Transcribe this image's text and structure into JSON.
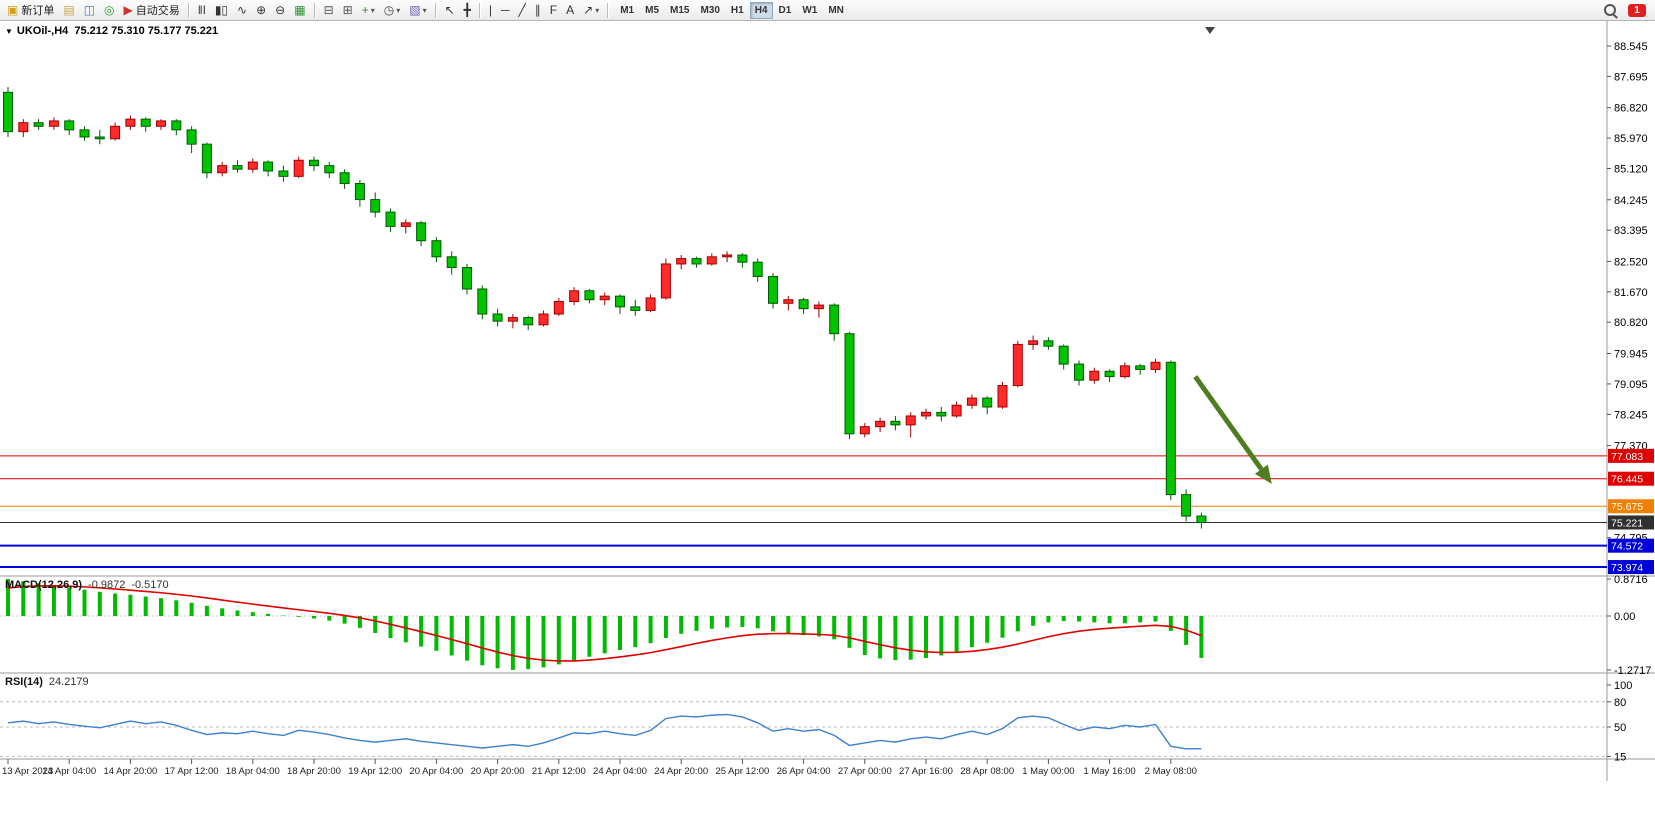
{
  "toolbar": {
    "items": [
      {
        "name": "new-order-button",
        "icon": "new-order-icon",
        "glyph": "▣",
        "color": "#d4a017",
        "label": "新订单"
      },
      {
        "name": "profiles-button",
        "icon": "profiles-icon",
        "glyph": "▤",
        "color": "#c8a54a"
      },
      {
        "name": "market-watch-button",
        "icon": "market-watch-icon",
        "glyph": "◫",
        "color": "#4a7fc0"
      },
      {
        "name": "data-window-button",
        "icon": "data-window-icon",
        "glyph": "◎",
        "color": "#2f9e2f"
      },
      {
        "name": "auto-trading-button",
        "icon": "auto-trading-icon",
        "glyph": "▶",
        "color": "#d03030",
        "label": "自动交易"
      },
      {
        "sep": true
      },
      {
        "name": "bar-chart-button",
        "icon": "bar-chart-icon",
        "glyph": "ǁǀ",
        "color": "#333333"
      },
      {
        "name": "candlestick-chart-button",
        "icon": "candlestick-icon",
        "glyph": "▮▯",
        "color": "#333333"
      },
      {
        "name": "line-chart-button",
        "icon": "line-chart-icon",
        "glyph": "∿",
        "color": "#333333"
      },
      {
        "name": "zoom-in-button",
        "icon": "zoom-in-icon",
        "glyph": "⊕",
        "color": "#333333"
      },
      {
        "name": "zoom-out-button",
        "icon": "zoom-out-icon",
        "glyph": "⊖",
        "color": "#333333"
      },
      {
        "name": "tile-windows-button",
        "icon": "tile-windows-icon",
        "glyph": "▦",
        "color": "#2f8f2f"
      },
      {
        "sep": true
      },
      {
        "name": "arrange-horizontal-button",
        "icon": "arrange-horizontal-icon",
        "glyph": "⊟",
        "color": "#555555"
      },
      {
        "name": "arrange-vertical-button",
        "icon": "arrange-vertical-icon",
        "glyph": "⊞",
        "color": "#555555"
      },
      {
        "name": "add-indicator-button",
        "icon": "add-indicator-icon",
        "glyph": "+",
        "color": "#2f8f2f",
        "dropdown": true
      },
      {
        "name": "periods-button",
        "icon": "clock-icon",
        "glyph": "◷",
        "color": "#444444",
        "dropdown": true
      },
      {
        "name": "templates-button",
        "icon": "template-icon",
        "glyph": "▧",
        "color": "#6a5fb0",
        "dropdown": true
      },
      {
        "sep": true
      },
      {
        "name": "cursor-button",
        "icon": "cursor-icon",
        "glyph": "↖",
        "color": "#333333"
      },
      {
        "name": "crosshair-button",
        "icon": "crosshair-icon",
        "glyph": "╋",
        "color": "#333333"
      },
      {
        "sep": true
      },
      {
        "name": "vertical-line-button",
        "icon": "vertical-line-icon",
        "glyph": "|",
        "color": "#333333"
      },
      {
        "name": "horizontal-line-button",
        "icon": "horizontal-line-icon",
        "glyph": "─",
        "color": "#333333"
      },
      {
        "name": "trendline-button",
        "icon": "trendline-icon",
        "glyph": "╱",
        "color": "#333333"
      },
      {
        "name": "channel-button",
        "icon": "channel-icon",
        "glyph": "∥",
        "color": "#333333"
      },
      {
        "name": "fibonacci-button",
        "icon": "fibonacci-icon",
        "glyph": "F",
        "color": "#333333"
      },
      {
        "name": "text-label-button",
        "icon": "text-icon",
        "glyph": "A",
        "color": "#333333"
      },
      {
        "name": "arrow-shapes-button",
        "icon": "arrow-shape-icon",
        "glyph": "↗",
        "color": "#333333",
        "dropdown": true
      },
      {
        "sep": true
      }
    ],
    "timeframes": [
      "M1",
      "M5",
      "M15",
      "M30",
      "H1",
      "H4",
      "D1",
      "W1",
      "MN"
    ],
    "active_timeframe": "H4",
    "notification_count": "1"
  },
  "chart": {
    "collapse_marker": "▼",
    "title_symbol": "UKOil-,H4",
    "title_ohlc": "75.212 75.310 75.177 75.221"
  },
  "chart_data": {
    "type": "candlestick",
    "symbol": "UKOil-",
    "period": "H4",
    "up_color": "#ff2a2a",
    "up_stroke": "#a00000",
    "down_color": "#00c400",
    "down_stroke": "#005a00",
    "candles": [
      [
        87.25,
        87.4,
        86.0,
        86.15
      ],
      [
        86.15,
        86.5,
        86.0,
        86.4
      ],
      [
        86.4,
        86.5,
        86.2,
        86.3
      ],
      [
        86.3,
        86.55,
        86.2,
        86.45
      ],
      [
        86.45,
        86.5,
        86.05,
        86.2
      ],
      [
        86.2,
        86.3,
        85.9,
        86.0
      ],
      [
        86.0,
        86.2,
        85.8,
        85.95
      ],
      [
        85.95,
        86.4,
        85.9,
        86.3
      ],
      [
        86.3,
        86.6,
        86.2,
        86.5
      ],
      [
        86.5,
        86.55,
        86.15,
        86.3
      ],
      [
        86.3,
        86.5,
        86.2,
        86.45
      ],
      [
        86.45,
        86.5,
        86.05,
        86.2
      ],
      [
        86.2,
        86.3,
        85.55,
        85.8
      ],
      [
        85.8,
        85.85,
        84.85,
        85.0
      ],
      [
        85.0,
        85.3,
        84.9,
        85.2
      ],
      [
        85.2,
        85.35,
        85.0,
        85.1
      ],
      [
        85.1,
        85.4,
        85.0,
        85.3
      ],
      [
        85.3,
        85.35,
        84.9,
        85.05
      ],
      [
        85.05,
        85.2,
        84.75,
        84.9
      ],
      [
        84.9,
        85.45,
        84.85,
        85.35
      ],
      [
        85.35,
        85.45,
        85.05,
        85.2
      ],
      [
        85.2,
        85.3,
        84.85,
        85.0
      ],
      [
        85.0,
        85.1,
        84.55,
        84.7
      ],
      [
        84.7,
        84.8,
        84.05,
        84.25
      ],
      [
        84.25,
        84.45,
        83.75,
        83.9
      ],
      [
        83.9,
        84.0,
        83.35,
        83.5
      ],
      [
        83.5,
        83.7,
        83.3,
        83.6
      ],
      [
        83.6,
        83.65,
        82.95,
        83.1
      ],
      [
        83.1,
        83.2,
        82.5,
        82.65
      ],
      [
        82.65,
        82.8,
        82.15,
        82.35
      ],
      [
        82.35,
        82.45,
        81.6,
        81.75
      ],
      [
        81.75,
        81.85,
        80.9,
        81.05
      ],
      [
        81.05,
        81.2,
        80.7,
        80.85
      ],
      [
        80.85,
        81.05,
        80.65,
        80.95
      ],
      [
        80.95,
        81.0,
        80.6,
        80.75
      ],
      [
        80.75,
        81.15,
        80.7,
        81.05
      ],
      [
        81.05,
        81.5,
        81.0,
        81.4
      ],
      [
        81.4,
        81.8,
        81.3,
        81.7
      ],
      [
        81.7,
        81.75,
        81.35,
        81.45
      ],
      [
        81.45,
        81.65,
        81.3,
        81.55
      ],
      [
        81.55,
        81.6,
        81.05,
        81.25
      ],
      [
        81.25,
        81.45,
        81.0,
        81.15
      ],
      [
        81.15,
        81.6,
        81.1,
        81.5
      ],
      [
        81.5,
        82.6,
        81.45,
        82.45
      ],
      [
        82.45,
        82.7,
        82.3,
        82.6
      ],
      [
        82.6,
        82.65,
        82.35,
        82.45
      ],
      [
        82.45,
        82.75,
        82.4,
        82.65
      ],
      [
        82.65,
        82.8,
        82.5,
        82.7
      ],
      [
        82.7,
        82.75,
        82.35,
        82.5
      ],
      [
        82.5,
        82.6,
        81.95,
        82.1
      ],
      [
        82.1,
        82.2,
        81.2,
        81.35
      ],
      [
        81.35,
        81.55,
        81.15,
        81.45
      ],
      [
        81.45,
        81.5,
        81.05,
        81.2
      ],
      [
        81.2,
        81.4,
        80.95,
        81.3
      ],
      [
        81.3,
        81.35,
        80.3,
        80.5
      ],
      [
        80.5,
        80.55,
        77.55,
        77.7
      ],
      [
        77.7,
        78.0,
        77.6,
        77.9
      ],
      [
        77.9,
        78.15,
        77.75,
        78.05
      ],
      [
        78.05,
        78.2,
        77.8,
        77.95
      ],
      [
        77.95,
        78.3,
        77.6,
        78.2
      ],
      [
        78.2,
        78.4,
        78.1,
        78.3
      ],
      [
        78.3,
        78.45,
        78.05,
        78.2
      ],
      [
        78.2,
        78.6,
        78.15,
        78.5
      ],
      [
        78.5,
        78.8,
        78.4,
        78.7
      ],
      [
        78.7,
        78.75,
        78.25,
        78.45
      ],
      [
        78.45,
        79.15,
        78.4,
        79.05
      ],
      [
        79.05,
        80.3,
        79.0,
        80.2
      ],
      [
        80.2,
        80.45,
        80.05,
        80.3
      ],
      [
        80.3,
        80.4,
        80.05,
        80.15
      ],
      [
        80.15,
        80.2,
        79.5,
        79.65
      ],
      [
        79.65,
        79.75,
        79.05,
        79.2
      ],
      [
        79.2,
        79.55,
        79.1,
        79.45
      ],
      [
        79.45,
        79.5,
        79.15,
        79.3
      ],
      [
        79.3,
        79.7,
        79.25,
        79.6
      ],
      [
        79.6,
        79.65,
        79.35,
        79.5
      ],
      [
        79.5,
        79.8,
        79.4,
        79.7
      ],
      [
        79.7,
        79.75,
        75.85,
        76.0
      ],
      [
        76.0,
        76.15,
        75.25,
        75.4
      ],
      [
        75.4,
        75.5,
        75.05,
        75.22
      ]
    ],
    "x_axis": {
      "label_step": 4,
      "labels": [
        "13 Apr 2023",
        "14 Apr 04:00",
        "14 Apr 20:00",
        "17 Apr 12:00",
        "18 Apr 04:00",
        "18 Apr 20:00",
        "19 Apr 12:00",
        "20 Apr 04:00",
        "20 Apr 20:00",
        "21 Apr 12:00",
        "24 Apr 04:00",
        "24 Apr 20:00",
        "25 Apr 12:00",
        "26 Apr 04:00",
        "27 Apr 00:00",
        "27 Apr 16:00",
        "28 Apr 08:00",
        "1 May 00:00",
        "1 May 16:00",
        "2 May 08:00"
      ]
    },
    "y_axis": {
      "range": [
        73.9,
        88.6
      ],
      "ticks": [
        88.545,
        87.695,
        86.82,
        85.97,
        85.12,
        84.245,
        83.395,
        82.52,
        81.67,
        80.82,
        79.945,
        79.095,
        78.245,
        77.37,
        74.795
      ]
    },
    "last_price": 75.221,
    "hlines": [
      {
        "price": 77.083,
        "color": "#e00000",
        "width": 1
      },
      {
        "price": 76.445,
        "color": "#e00000",
        "width": 1
      },
      {
        "price": 75.675,
        "color": "#f08000",
        "width": 1
      },
      {
        "price": 75.221,
        "color": "#303030",
        "width": 1
      },
      {
        "price": 74.572,
        "color": "#0000d8",
        "width": 2
      },
      {
        "price": 73.974,
        "color": "#0000d8",
        "width": 2
      }
    ],
    "annotation_arrow": {
      "from": {
        "i": 77.6,
        "price": 79.3
      },
      "to": {
        "i": 82.6,
        "price": 76.3
      },
      "color": "#4e7d22"
    },
    "indicators": {
      "macd": {
        "label": "MACD(12,26,9)",
        "value_main": "-0.9872",
        "value_signal": "-0.5170",
        "histogram_color": "#00bb00",
        "signal_color": "#e00000",
        "scale": [
          "0.8716",
          "0.00",
          "-1.2717"
        ],
        "histogram": [
          0.87,
          0.82,
          0.77,
          0.72,
          0.67,
          0.62,
          0.57,
          0.53,
          0.5,
          0.46,
          0.42,
          0.37,
          0.31,
          0.24,
          0.18,
          0.13,
          0.09,
          0.05,
          0.01,
          -0.02,
          -0.06,
          -0.11,
          -0.18,
          -0.28,
          -0.4,
          -0.52,
          -0.62,
          -0.72,
          -0.82,
          -0.93,
          -1.05,
          -1.16,
          -1.23,
          -1.27,
          -1.25,
          -1.21,
          -1.14,
          -1.05,
          -0.96,
          -0.88,
          -0.8,
          -0.73,
          -0.64,
          -0.52,
          -0.42,
          -0.35,
          -0.3,
          -0.27,
          -0.26,
          -0.29,
          -0.36,
          -0.41,
          -0.45,
          -0.48,
          -0.55,
          -0.75,
          -0.92,
          -1.0,
          -1.04,
          -1.03,
          -0.99,
          -0.93,
          -0.84,
          -0.73,
          -0.63,
          -0.51,
          -0.36,
          -0.23,
          -0.15,
          -0.12,
          -0.13,
          -0.15,
          -0.17,
          -0.17,
          -0.15,
          -0.13,
          -0.35,
          -0.68,
          -0.9872
        ]
      },
      "rsi": {
        "label": "RSI(14)",
        "value": "24.2179",
        "line_color": "#3f7fce",
        "levels": [
          80,
          50,
          15
        ],
        "scale": [
          "100",
          "80",
          "50",
          "15"
        ],
        "values": [
          55,
          57,
          54,
          56,
          53,
          51,
          49,
          53,
          57,
          54,
          56,
          52,
          46,
          41,
          43,
          42,
          45,
          42,
          40,
          46,
          44,
          41,
          37,
          34,
          32,
          34,
          36,
          33,
          31,
          29,
          27,
          25,
          27,
          29,
          27,
          31,
          37,
          43,
          42,
          45,
          42,
          40,
          46,
          60,
          63,
          62,
          64,
          65,
          62,
          55,
          45,
          48,
          45,
          47,
          40,
          28,
          31,
          34,
          32,
          36,
          38,
          36,
          41,
          45,
          41,
          48,
          61,
          63,
          61,
          53,
          46,
          50,
          48,
          52,
          50,
          53,
          27,
          24,
          24.2
        ]
      }
    }
  }
}
